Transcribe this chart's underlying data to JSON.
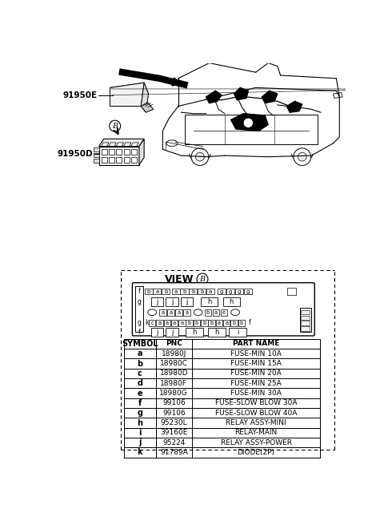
{
  "bg_color": "#ffffff",
  "table_data": [
    [
      "SYMBOL",
      "PNC",
      "PART NAME"
    ],
    [
      "a",
      "18980J",
      "FUSE-MIN 10A"
    ],
    [
      "b",
      "18980C",
      "FUSE-MIN 15A"
    ],
    [
      "c",
      "18980D",
      "FUSE-MIN 20A"
    ],
    [
      "d",
      "18980F",
      "FUSE-MIN 25A"
    ],
    [
      "e",
      "18980G",
      "FUSE-MIN 30A"
    ],
    [
      "f",
      "99106",
      "FUSE-SLOW BLOW 30A"
    ],
    [
      "g",
      "99106",
      "FUSE-SLOW BLOW 40A"
    ],
    [
      "h",
      "95230L",
      "RELAY ASSY-MINI"
    ],
    [
      "i",
      "39160E",
      "RELAY-MAIN"
    ],
    [
      "j",
      "95224",
      "RELAY ASSY-POWER"
    ],
    [
      "k",
      "91789A",
      "DIODE(2P)"
    ]
  ],
  "label_91950E": "91950E",
  "label_91950D": "91950D",
  "view_label": "VIEW",
  "view_circle": "B"
}
